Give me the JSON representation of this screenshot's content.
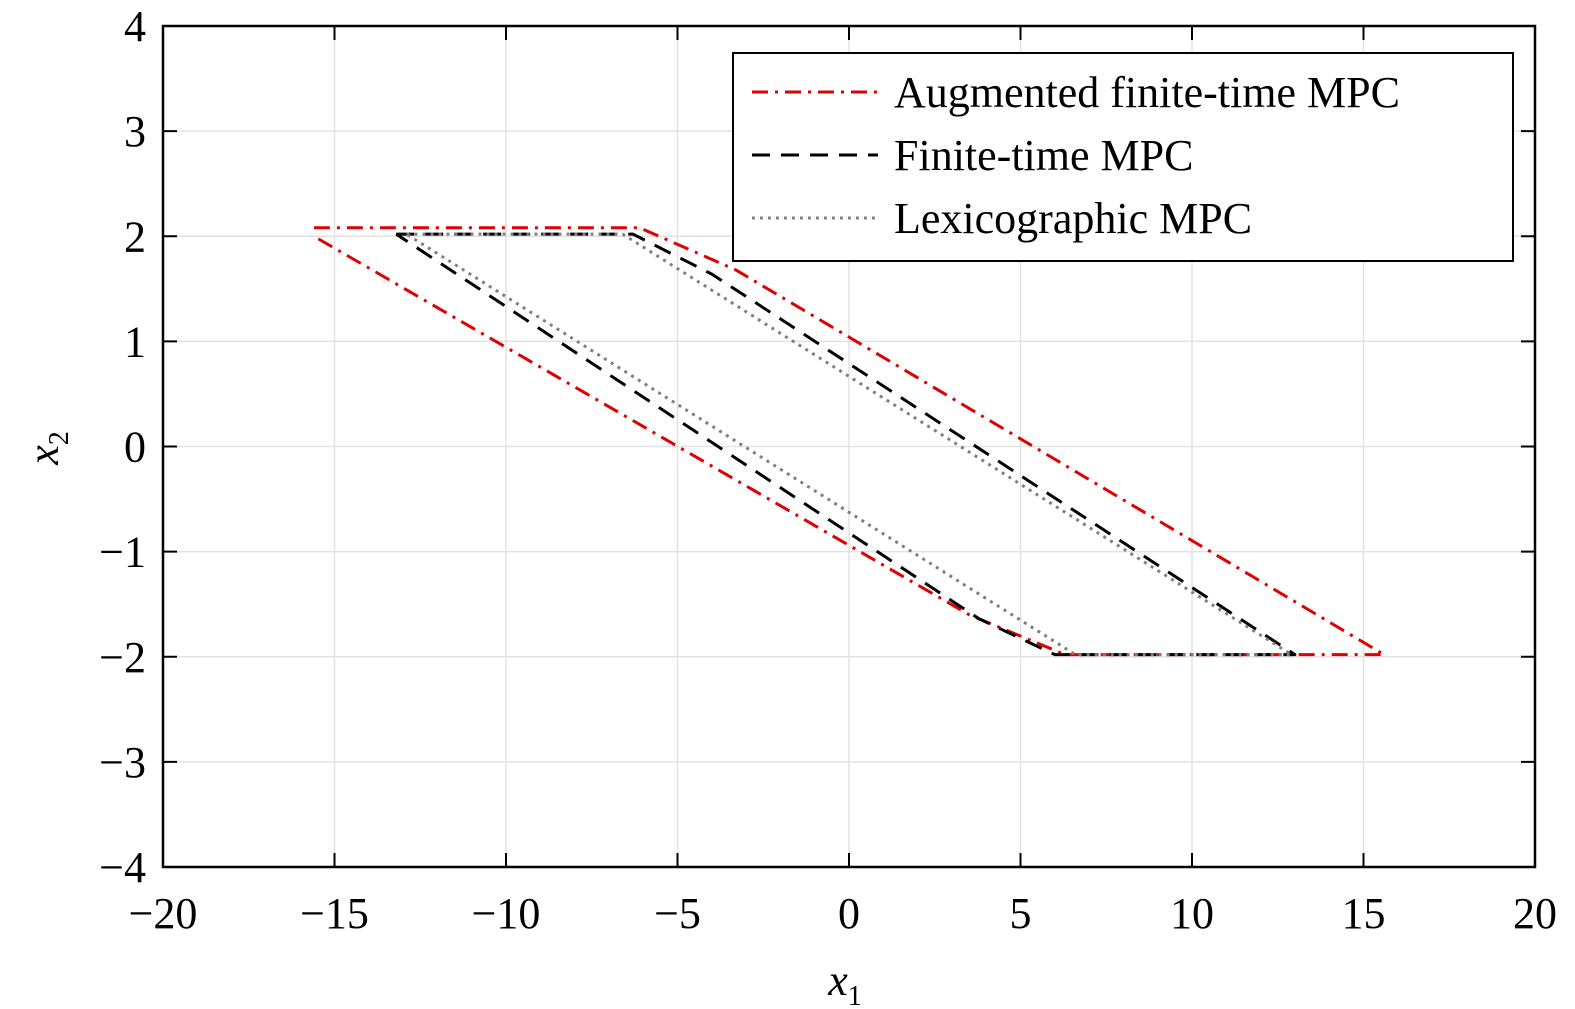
{
  "chart_data": {
    "type": "line",
    "title": "",
    "xlabel": "x",
    "xlabel_sub": "1",
    "ylabel": "x",
    "ylabel_sub": "2",
    "xlim": [
      -20,
      20
    ],
    "ylim": [
      -4,
      4
    ],
    "xticks": [
      -20,
      -15,
      -10,
      -5,
      0,
      5,
      10,
      15,
      20
    ],
    "yticks": [
      -4,
      -3,
      -2,
      -1,
      0,
      1,
      2,
      3,
      4
    ],
    "xtick_labels": [
      "−20",
      "−15",
      "−10",
      "−5",
      "0",
      "5",
      "10",
      "15",
      "20"
    ],
    "ytick_labels": [
      "−4",
      "−3",
      "−2",
      "−1",
      "0",
      "1",
      "2",
      "3",
      "4"
    ],
    "grid": true,
    "legend_position": "top-right",
    "series": [
      {
        "name": "Augmented finite-time MPC",
        "color": "#e00000",
        "dash": "dashdot",
        "x": [
          -15.6,
          -6.1,
          -3.3,
          15.6,
          6.3,
          3.5,
          -15.6
        ],
        "y": [
          2.08,
          2.08,
          1.68,
          -1.98,
          -1.98,
          -1.6,
          2.0
        ]
      },
      {
        "name": "Finite-time MPC",
        "color": "#000000",
        "dash": "dashed",
        "x": [
          -13.2,
          -6.3,
          -4.0,
          13.0,
          6.0,
          3.8,
          -13.2
        ],
        "y": [
          2.02,
          2.02,
          1.64,
          -1.98,
          -1.98,
          -1.64,
          2.02
        ]
      },
      {
        "name": "Lexicographic MPC",
        "color": "#808080",
        "dash": "dotted",
        "x": [
          -12.9,
          -6.6,
          12.9,
          6.6,
          -12.9
        ],
        "y": [
          2.02,
          2.02,
          -1.98,
          -1.98,
          2.02
        ]
      }
    ]
  }
}
